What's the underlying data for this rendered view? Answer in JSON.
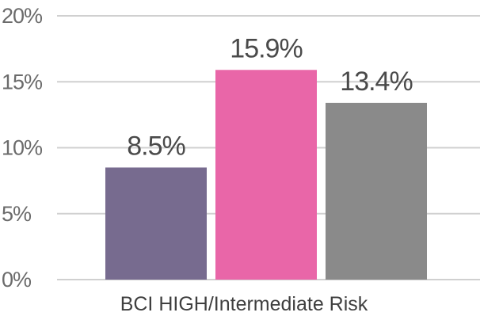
{
  "chart_data": {
    "type": "bar",
    "categories": [
      "BCI HIGH/Intermediate Risk"
    ],
    "series": [
      {
        "values": [
          8.5
        ],
        "color": "#776b8f",
        "label": "8.5%"
      },
      {
        "values": [
          15.9
        ],
        "color": "#e966a8",
        "label": "15.9%"
      },
      {
        "values": [
          13.4
        ],
        "color": "#8a8a8a",
        "label": "13.4%"
      }
    ],
    "ylim": [
      0,
      20
    ],
    "yticks": [
      0,
      5,
      10,
      15,
      20
    ],
    "ytick_labels": [
      "0%",
      "5%",
      "10%",
      "15%",
      "20%"
    ],
    "grid": true,
    "title": "",
    "xlabel": "",
    "ylabel": ""
  }
}
